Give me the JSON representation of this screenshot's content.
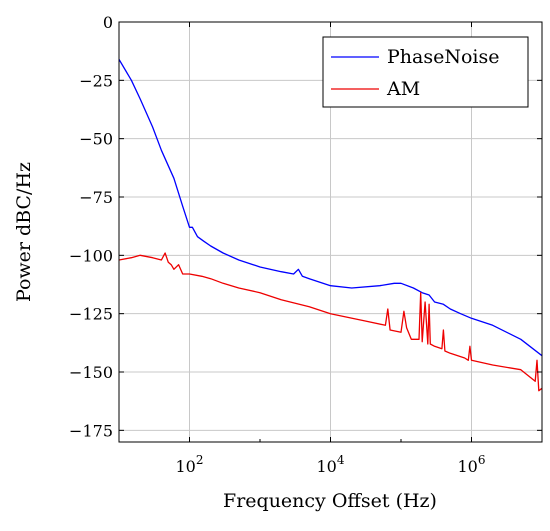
{
  "chart_data": {
    "type": "line",
    "xlabel": "Frequency Offset (Hz)",
    "ylabel": "Power dBC/Hz",
    "x_scale": "log",
    "xlim": [
      10,
      10000000
    ],
    "ylim": [
      -180,
      0
    ],
    "x_ticks": [
      100,
      10000,
      1000000
    ],
    "x_tick_labels": [
      {
        "base": "10",
        "exp": "2"
      },
      {
        "base": "10",
        "exp": "4"
      },
      {
        "base": "10",
        "exp": "6"
      }
    ],
    "y_ticks": [
      0,
      -25,
      -50,
      -75,
      -100,
      -125,
      -150,
      -175
    ],
    "y_tick_labels": [
      "0",
      "−25",
      "−50",
      "−75",
      "−100",
      "−125",
      "−150",
      "−175"
    ],
    "grid": true,
    "legend_position": "top-right",
    "series": [
      {
        "name": "PhaseNoise",
        "color": "#0000ff",
        "x": [
          10,
          15,
          20,
          30,
          40,
          60,
          80,
          100,
          110,
          130,
          160,
          200,
          300,
          500,
          800,
          1000,
          2000,
          3000,
          3500,
          4000,
          5000,
          10000,
          20000,
          50000,
          80000,
          100000,
          150000,
          200000,
          250000,
          300000,
          400000,
          500000,
          700000,
          1000000,
          2000000,
          5000000,
          10000000
        ],
        "y": [
          -16,
          -25,
          -33,
          -45,
          -55,
          -67,
          -79,
          -88,
          -88,
          -92,
          -94,
          -96,
          -99,
          -102,
          -104,
          -105,
          -107,
          -108,
          -106,
          -109,
          -110,
          -113,
          -114,
          -113,
          -112,
          -112,
          -114,
          -116,
          -117,
          -120,
          -121,
          -123,
          -125,
          -127,
          -130,
          -136,
          -143
        ]
      },
      {
        "name": "AM",
        "color": "#ee0000",
        "x": [
          10,
          15,
          20,
          30,
          40,
          45,
          50,
          55,
          60,
          70,
          80,
          100,
          150,
          200,
          300,
          500,
          1000,
          2000,
          5000,
          10000,
          30000,
          60000,
          65000,
          70000,
          100000,
          110000,
          120000,
          140000,
          180000,
          190000,
          200000,
          220000,
          240000,
          250000,
          260000,
          300000,
          380000,
          400000,
          420000,
          500000,
          800000,
          900000,
          950000,
          1000000,
          2000000,
          5000000,
          8000000,
          8500000,
          9000000,
          10000000
        ],
        "y": [
          -102,
          -101,
          -100,
          -101,
          -102,
          -99,
          -103,
          -104,
          -106,
          -104,
          -108,
          -108,
          -109,
          -110,
          -112,
          -114,
          -116,
          -119,
          -122,
          -125,
          -128,
          -130,
          -123,
          -132,
          -133,
          -124,
          -131,
          -136,
          -136,
          -116,
          -137,
          -120,
          -138,
          -121,
          -138,
          -139,
          -140,
          -132,
          -141,
          -142,
          -144,
          -145,
          -139,
          -145,
          -147,
          -149,
          -154,
          -145,
          -158,
          -157
        ]
      }
    ]
  }
}
